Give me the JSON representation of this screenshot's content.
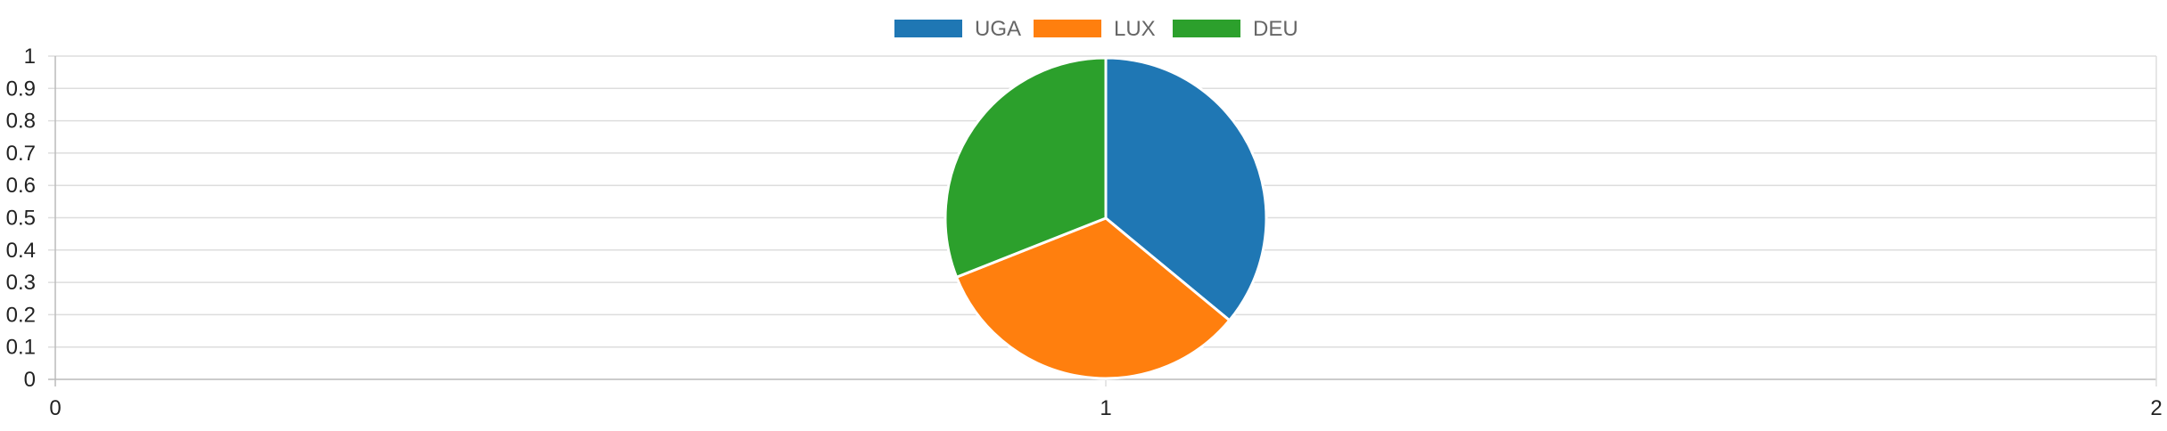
{
  "chart_data": {
    "type": "pie",
    "legend_position": "top",
    "grid": true,
    "xlim": [
      0,
      2
    ],
    "ylim": [
      0,
      1
    ],
    "x_ticks": [
      "0",
      "1",
      "2"
    ],
    "y_ticks": [
      "0",
      "0.1",
      "0.2",
      "0.3",
      "0.4",
      "0.5",
      "0.6",
      "0.7",
      "0.8",
      "0.9",
      "1"
    ],
    "slices": [
      {
        "label": "UGA",
        "value": 36,
        "color": "#1f77b4"
      },
      {
        "label": "LUX",
        "value": 33,
        "color": "#ff7f0e"
      },
      {
        "label": "DEU",
        "value": 31,
        "color": "#2ca02c"
      }
    ]
  }
}
